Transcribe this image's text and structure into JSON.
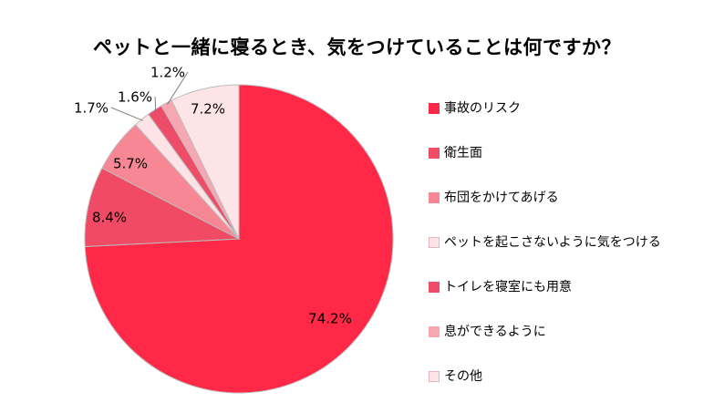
{
  "chart_data": {
    "type": "pie",
    "title": "ペットと一緒に寝るとき、気をつけていることは何ですか？",
    "categories": [
      "事故のリスク",
      "衛生面",
      "布団をかけてあげる",
      "ペットを起こさないように気をつける",
      "トイレを寝室にも用意",
      "息ができるように",
      "その他"
    ],
    "values": [
      74.2,
      8.4,
      5.7,
      1.7,
      1.6,
      1.2,
      7.2
    ],
    "data_labels": [
      "74.2%",
      "8.4%",
      "5.7%",
      "1.7%",
      "1.6%",
      "1.2%",
      "7.2%"
    ],
    "colors": [
      "#ff2846",
      "#f04a64",
      "#f78795",
      "#fde3e6",
      "#ee4d6a",
      "#f7a7b2",
      "#fde4e6"
    ],
    "legend_position": "right",
    "start_angle": "12 o'clock",
    "direction": "clockwise"
  }
}
